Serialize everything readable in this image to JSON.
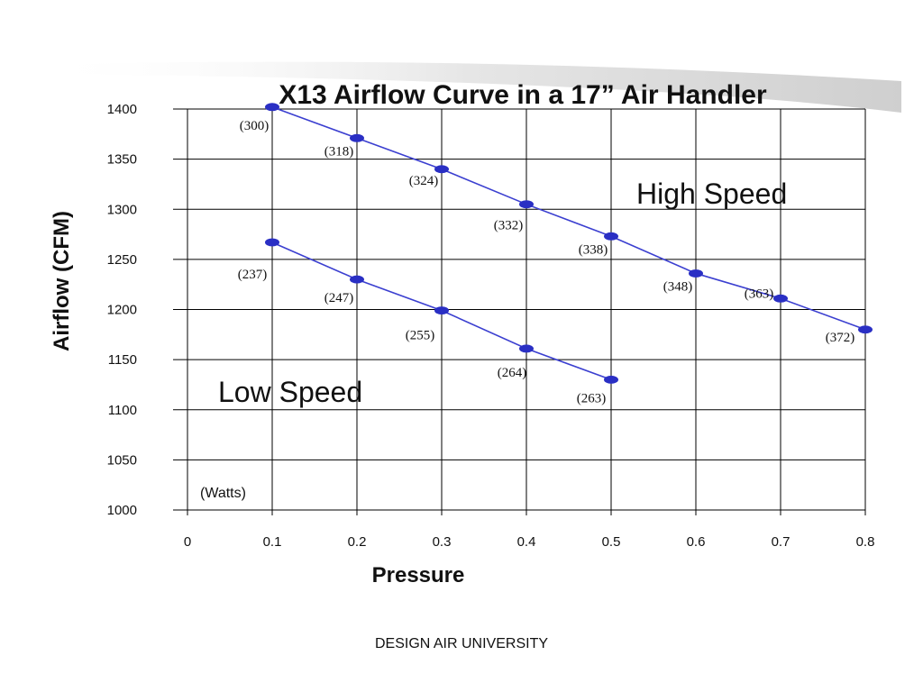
{
  "footer": "DESIGN AIR UNIVERSITY",
  "chart_data": {
    "type": "line",
    "title": "X13 Airflow Curve in a 17” Air Handler",
    "xlabel": "Pressure",
    "ylabel": "Airflow (CFM)",
    "xlim": [
      0,
      0.8
    ],
    "ylim": [
      1000,
      1400
    ],
    "x_ticks": [
      "0",
      "0.1",
      "0.2",
      "0.3",
      "0.4",
      "0.5",
      "0.6",
      "0.7",
      "0.8"
    ],
    "y_ticks": [
      "1000",
      "1050",
      "1100",
      "1150",
      "1200",
      "1250",
      "1300",
      "1350",
      "1400"
    ],
    "grid": true,
    "watts_note": "(Watts)",
    "colors": {
      "series": "#3b3fd0",
      "marker": "#2a2fc4",
      "grid": "#000000"
    },
    "series": [
      {
        "name": "High Speed",
        "x": [
          0.1,
          0.2,
          0.3,
          0.4,
          0.5,
          0.6,
          0.7,
          0.8
        ],
        "y": [
          1402,
          1371,
          1340,
          1305,
          1273,
          1236,
          1211,
          1180
        ],
        "point_labels": [
          "(300)",
          "(318)",
          "(324)",
          "(332)",
          "(338)",
          "(348)",
          "(363)",
          "(372)"
        ]
      },
      {
        "name": "Low Speed",
        "x": [
          0.1,
          0.2,
          0.3,
          0.4,
          0.5
        ],
        "y": [
          1267,
          1230,
          1199,
          1161,
          1130
        ],
        "point_labels": [
          "(237)",
          "(247)",
          "(255)",
          "(264)",
          "(263)"
        ]
      }
    ]
  }
}
